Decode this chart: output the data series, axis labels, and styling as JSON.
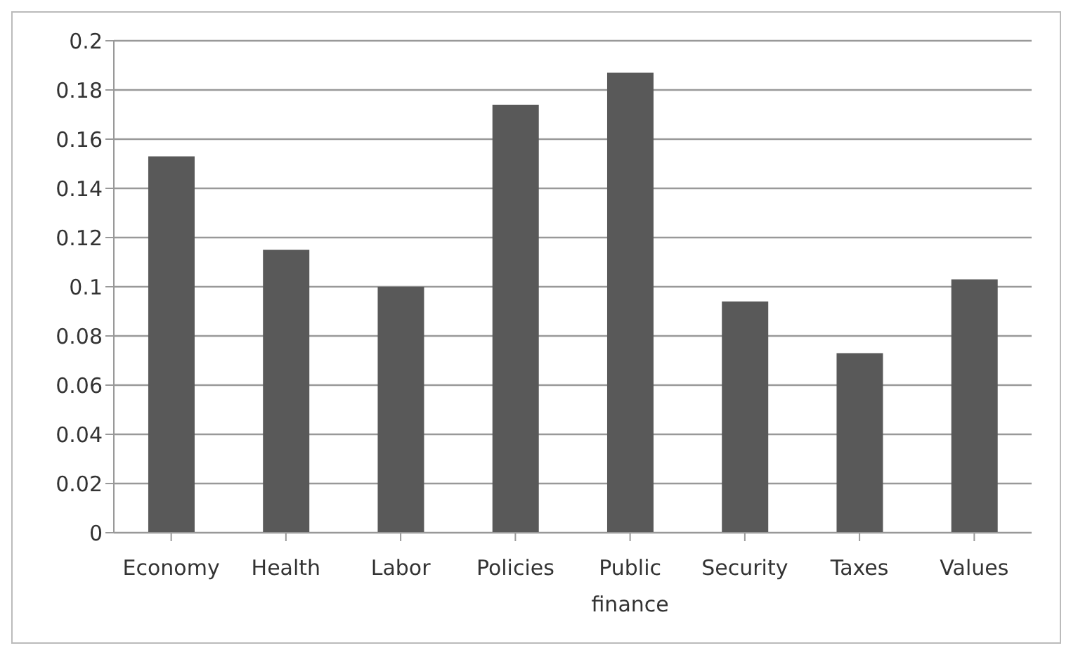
{
  "chart_data": {
    "type": "bar",
    "categories": [
      "Economy",
      "Health",
      "Labor",
      "Policies",
      "Public finance",
      "Security",
      "Taxes",
      "Values"
    ],
    "values": [
      0.153,
      0.115,
      0.1,
      0.174,
      0.187,
      0.094,
      0.073,
      0.103
    ],
    "color": "#595959",
    "ylim": [
      0,
      0.2
    ],
    "yticks": [
      0,
      0.02,
      0.04,
      0.06,
      0.08,
      0.1,
      0.12,
      0.14,
      0.16,
      0.18,
      0.2
    ],
    "grid": "y",
    "legend": false
  }
}
